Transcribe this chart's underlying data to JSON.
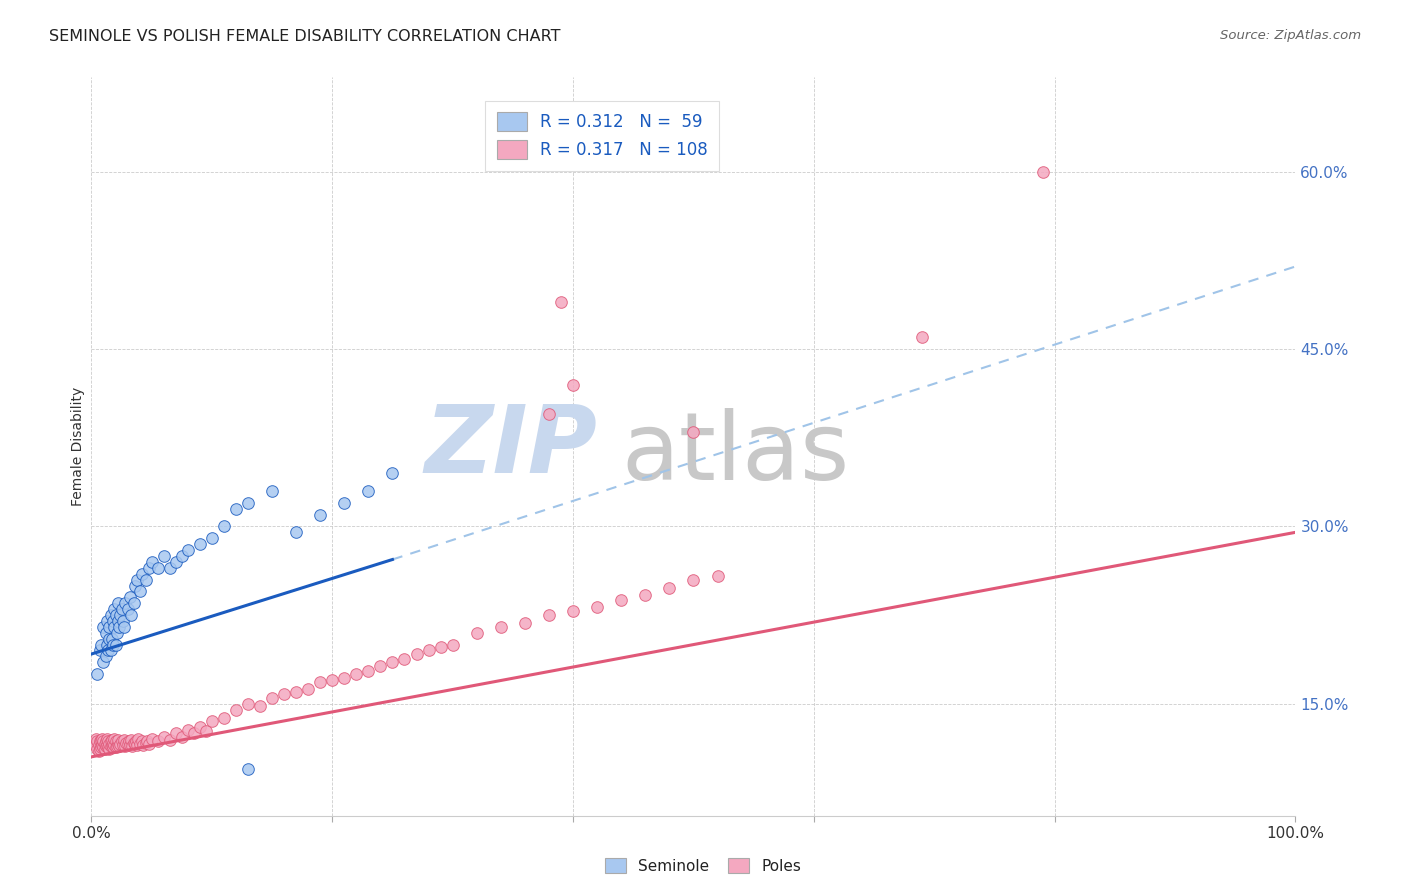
{
  "title": "SEMINOLE VS POLISH FEMALE DISABILITY CORRELATION CHART",
  "source": "Source: ZipAtlas.com",
  "ylabel": "Female Disability",
  "xlim": [
    0.0,
    1.0
  ],
  "ylim": [
    0.055,
    0.68
  ],
  "y_ticks": [
    0.15,
    0.3,
    0.45,
    0.6
  ],
  "y_tick_labels": [
    "15.0%",
    "30.0%",
    "45.0%",
    "60.0%"
  ],
  "x_ticks": [
    0.0,
    0.2,
    0.4,
    0.6,
    0.8,
    1.0
  ],
  "x_tick_labels": [
    "0.0%",
    "",
    "",
    "",
    "",
    "100.0%"
  ],
  "legend_text1": "R = 0.312   N =  59",
  "legend_text2": "R = 0.317   N = 108",
  "seminole_color": "#a8c8f0",
  "poles_color": "#f4a8c0",
  "trend_seminole_solid_color": "#1a5bbf",
  "trend_seminole_dashed_color": "#a0c4e8",
  "trend_poles_color": "#e05878",
  "watermark_zip_color": "#c8d8ee",
  "watermark_atlas_color": "#c8c8c8",
  "seminole_x": [
    0.005,
    0.007,
    0.008,
    0.01,
    0.01,
    0.012,
    0.012,
    0.013,
    0.013,
    0.014,
    0.015,
    0.015,
    0.016,
    0.016,
    0.017,
    0.018,
    0.018,
    0.019,
    0.019,
    0.02,
    0.02,
    0.021,
    0.022,
    0.022,
    0.023,
    0.024,
    0.025,
    0.026,
    0.027,
    0.028,
    0.03,
    0.032,
    0.033,
    0.035,
    0.036,
    0.038,
    0.04,
    0.042,
    0.045,
    0.048,
    0.05,
    0.055,
    0.06,
    0.065,
    0.07,
    0.075,
    0.08,
    0.09,
    0.1,
    0.11,
    0.12,
    0.13,
    0.15,
    0.17,
    0.19,
    0.21,
    0.23,
    0.25,
    0.13
  ],
  "seminole_y": [
    0.175,
    0.195,
    0.2,
    0.185,
    0.215,
    0.19,
    0.21,
    0.2,
    0.22,
    0.195,
    0.205,
    0.215,
    0.195,
    0.225,
    0.205,
    0.2,
    0.22,
    0.215,
    0.23,
    0.2,
    0.225,
    0.21,
    0.22,
    0.235,
    0.215,
    0.225,
    0.23,
    0.22,
    0.215,
    0.235,
    0.23,
    0.24,
    0.225,
    0.235,
    0.25,
    0.255,
    0.245,
    0.26,
    0.255,
    0.265,
    0.27,
    0.265,
    0.275,
    0.265,
    0.27,
    0.275,
    0.28,
    0.285,
    0.29,
    0.3,
    0.315,
    0.32,
    0.33,
    0.295,
    0.31,
    0.32,
    0.33,
    0.345,
    0.095
  ],
  "poles_x": [
    0.003,
    0.004,
    0.005,
    0.005,
    0.006,
    0.006,
    0.007,
    0.007,
    0.008,
    0.008,
    0.009,
    0.009,
    0.01,
    0.01,
    0.011,
    0.011,
    0.012,
    0.012,
    0.013,
    0.013,
    0.014,
    0.014,
    0.015,
    0.015,
    0.016,
    0.016,
    0.017,
    0.017,
    0.018,
    0.018,
    0.019,
    0.019,
    0.02,
    0.02,
    0.021,
    0.022,
    0.022,
    0.023,
    0.024,
    0.025,
    0.026,
    0.027,
    0.028,
    0.029,
    0.03,
    0.031,
    0.032,
    0.033,
    0.034,
    0.035,
    0.036,
    0.037,
    0.038,
    0.039,
    0.04,
    0.042,
    0.043,
    0.045,
    0.046,
    0.048,
    0.05,
    0.055,
    0.06,
    0.065,
    0.07,
    0.075,
    0.08,
    0.085,
    0.09,
    0.095,
    0.1,
    0.11,
    0.12,
    0.13,
    0.14,
    0.15,
    0.16,
    0.17,
    0.18,
    0.19,
    0.2,
    0.21,
    0.22,
    0.23,
    0.24,
    0.25,
    0.26,
    0.27,
    0.28,
    0.29,
    0.3,
    0.32,
    0.34,
    0.36,
    0.38,
    0.4,
    0.42,
    0.44,
    0.46,
    0.48,
    0.5,
    0.52,
    0.38,
    0.4,
    0.39,
    0.5,
    0.69,
    0.79
  ],
  "poles_y": [
    0.115,
    0.12,
    0.112,
    0.118,
    0.11,
    0.115,
    0.112,
    0.118,
    0.113,
    0.119,
    0.115,
    0.12,
    0.113,
    0.118,
    0.112,
    0.116,
    0.114,
    0.118,
    0.115,
    0.12,
    0.113,
    0.118,
    0.112,
    0.116,
    0.114,
    0.118,
    0.115,
    0.119,
    0.113,
    0.117,
    0.115,
    0.12,
    0.113,
    0.118,
    0.114,
    0.116,
    0.119,
    0.114,
    0.116,
    0.118,
    0.115,
    0.119,
    0.114,
    0.117,
    0.116,
    0.118,
    0.115,
    0.119,
    0.114,
    0.117,
    0.116,
    0.118,
    0.115,
    0.12,
    0.116,
    0.118,
    0.115,
    0.117,
    0.118,
    0.116,
    0.12,
    0.118,
    0.122,
    0.119,
    0.125,
    0.122,
    0.128,
    0.125,
    0.13,
    0.127,
    0.135,
    0.138,
    0.145,
    0.15,
    0.148,
    0.155,
    0.158,
    0.16,
    0.162,
    0.168,
    0.17,
    0.172,
    0.175,
    0.178,
    0.182,
    0.185,
    0.188,
    0.192,
    0.195,
    0.198,
    0.2,
    0.21,
    0.215,
    0.218,
    0.225,
    0.228,
    0.232,
    0.238,
    0.242,
    0.248,
    0.255,
    0.258,
    0.395,
    0.42,
    0.49,
    0.38,
    0.46,
    0.6
  ],
  "trend_sem_x_start": 0.0,
  "trend_sem_x_solid_end": 0.25,
  "trend_sem_y_start": 0.192,
  "trend_sem_y_solid_end": 0.272,
  "trend_sem_y_full_end": 0.52,
  "trend_pol_x_start": 0.0,
  "trend_pol_x_end": 1.0,
  "trend_pol_y_start": 0.105,
  "trend_pol_y_end": 0.295
}
